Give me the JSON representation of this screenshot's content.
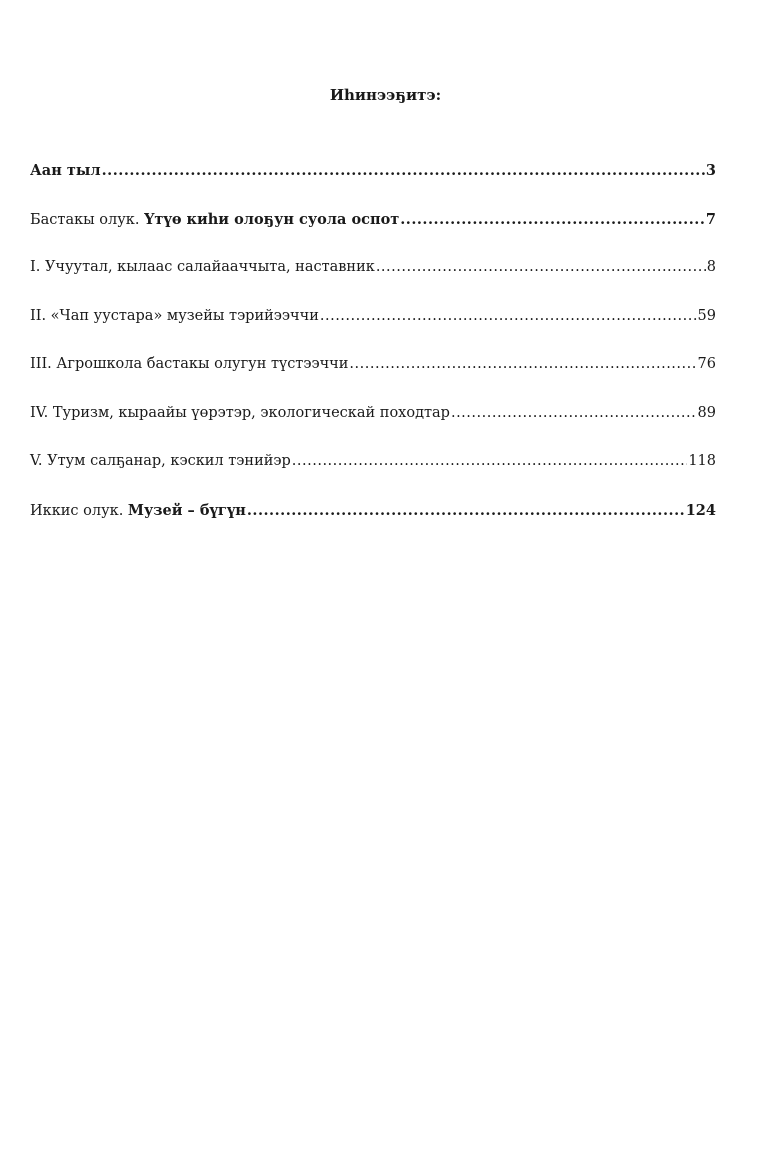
{
  "title": "Иһинээҕитэ:",
  "entries": [
    {
      "prefix": "",
      "label": "Аан тыл",
      "page": "3",
      "bold": true
    },
    {
      "prefix": "Бастакы олук. ",
      "label": "Үтүө киһи олоҕун суола оспот",
      "page": "7",
      "bold": true
    },
    {
      "prefix": "",
      "label": "I. Учуутал, кылаас салайааччыта, наставник",
      "page": "8",
      "bold": false
    },
    {
      "prefix": "",
      "label": "II. «Чап уустара» музейы тэрийээччи",
      "page": "59",
      "bold": false
    },
    {
      "prefix": "",
      "label": "III. Агрошкола бастакы олугун түстээччи",
      "page": "76",
      "bold": false
    },
    {
      "prefix": "",
      "label": "IV. Туризм, кыраайы үөрэтэр, экологическай походтар",
      "page": "89",
      "bold": false
    },
    {
      "prefix": "",
      "label": "V. Утум салҕанар, кэскил тэнийэр",
      "page": "118",
      "bold": false
    },
    {
      "prefix": "Иккис олук. ",
      "label": "Музей – бүгүн",
      "page": "124",
      "bold": true
    }
  ]
}
